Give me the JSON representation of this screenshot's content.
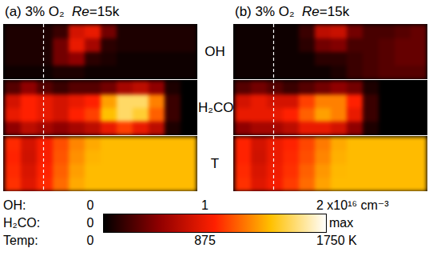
{
  "chart_data": {
    "type": "heatmap",
    "strip_labels": [
      "OH",
      "H₂CO",
      "T"
    ],
    "panels": [
      {
        "title": "(a) 3% O₂",
        "subtitle": "Re=15k",
        "cells": [
          [
            [
              0.1,
              0.1,
              0.1,
              0.2,
              0.8,
              0.9,
              0.4,
              0.1,
              0.1,
              0.1,
              0.1,
              0.1
            ],
            [
              0.1,
              0.1,
              0.1,
              0.4,
              0.9,
              0.6,
              0.15,
              0.1,
              0.1,
              0.1,
              0.1,
              0.1
            ],
            [
              0.1,
              0.1,
              0.1,
              0.4,
              0.5,
              0.15,
              0.1,
              0.05,
              0.05,
              0.05,
              0.05,
              0.05
            ],
            [
              0.05,
              0.05,
              0.05,
              0.1,
              0.1,
              0.05,
              0.05,
              0.05,
              0.05,
              0.05,
              0.05,
              0.05
            ]
          ],
          [
            [
              0.15,
              0.25,
              0.15,
              0.1,
              0.15,
              0.15,
              0.2,
              0.3,
              0.35,
              0.25,
              0.05,
              0
            ],
            [
              0.4,
              0.5,
              0.45,
              0.4,
              0.45,
              0.5,
              0.7,
              0.85,
              0.85,
              0.65,
              0.1,
              0
            ],
            [
              0.45,
              0.5,
              0.45,
              0.4,
              0.5,
              0.55,
              0.75,
              0.85,
              0.8,
              0.6,
              0.1,
              0
            ],
            [
              0.25,
              0.35,
              0.3,
              0.25,
              0.3,
              0.35,
              0.45,
              0.55,
              0.45,
              0.35,
              0.05,
              0
            ]
          ],
          [
            [
              900,
              700,
              850,
              1000,
              1150,
              1250,
              1300,
              1300,
              1300,
              1300,
              1300,
              1300
            ],
            [
              880,
              680,
              850,
              1020,
              1180,
              1280,
              1300,
              1300,
              1300,
              1300,
              1300,
              1300
            ],
            [
              900,
              720,
              880,
              1050,
              1220,
              1300,
              1300,
              1300,
              1300,
              1300,
              1300,
              1300
            ],
            [
              920,
              750,
              900,
              1080,
              1250,
              1300,
              1300,
              1300,
              1300,
              1300,
              1300,
              1300
            ]
          ]
        ]
      },
      {
        "title": "(b) 3% O₂",
        "subtitle": "Re=15k",
        "cells": [
          [
            [
              0.05,
              0.05,
              0.05,
              0.05,
              0.2,
              0.7,
              0.75,
              0.4,
              0.25,
              0.25,
              0.3,
              0.35
            ],
            [
              0.05,
              0.05,
              0.05,
              0.05,
              0.15,
              0.4,
              0.45,
              0.25,
              0.25,
              0.3,
              0.35,
              0.35
            ],
            [
              0.05,
              0.05,
              0.05,
              0.05,
              0.05,
              0.15,
              0.15,
              0.2,
              0.25,
              0.3,
              0.35,
              0.35
            ],
            [
              0.05,
              0.05,
              0.05,
              0.05,
              0.05,
              0.05,
              0.1,
              0.2,
              0.25,
              0.3,
              0.3,
              0.3
            ]
          ],
          [
            [
              0.15,
              0.2,
              0.15,
              0.1,
              0.15,
              0.2,
              0.25,
              0.2,
              0.05,
              0,
              0,
              0
            ],
            [
              0.4,
              0.45,
              0.4,
              0.4,
              0.55,
              0.65,
              0.65,
              0.5,
              0.1,
              0,
              0,
              0
            ],
            [
              0.45,
              0.45,
              0.45,
              0.5,
              0.6,
              0.7,
              0.65,
              0.45,
              0.1,
              0,
              0,
              0
            ],
            [
              0.25,
              0.3,
              0.3,
              0.35,
              0.45,
              0.45,
              0.4,
              0.25,
              0.05,
              0,
              0,
              0
            ]
          ],
          [
            [
              880,
              700,
              800,
              880,
              980,
              1120,
              1250,
              1300,
              1300,
              1300,
              1300,
              1300
            ],
            [
              880,
              680,
              800,
              900,
              1000,
              1150,
              1270,
              1300,
              1300,
              1300,
              1300,
              1300
            ],
            [
              900,
              720,
              820,
              920,
              1050,
              1200,
              1290,
              1300,
              1300,
              1300,
              1300,
              1300
            ],
            [
              920,
              750,
              840,
              950,
              1080,
              1230,
              1300,
              1300,
              1300,
              1300,
              1300,
              1300
            ]
          ]
        ]
      }
    ],
    "colorbar": [
      {
        "label": "OH:",
        "range": [
          0,
          2
        ],
        "ticks": [
          0,
          1,
          {
            "value": 2,
            "label": "2 x10¹⁶ cm⁻³"
          }
        ]
      },
      {
        "label": "H₂CO:",
        "range": [
          0,
          1
        ],
        "ticks": [
          0,
          {
            "value": 1,
            "label": "max"
          }
        ]
      },
      {
        "label": "Temp:",
        "range": [
          0,
          1750
        ],
        "ticks": [
          0,
          875,
          {
            "value": 1750,
            "label": "1750 K"
          }
        ]
      }
    ]
  }
}
